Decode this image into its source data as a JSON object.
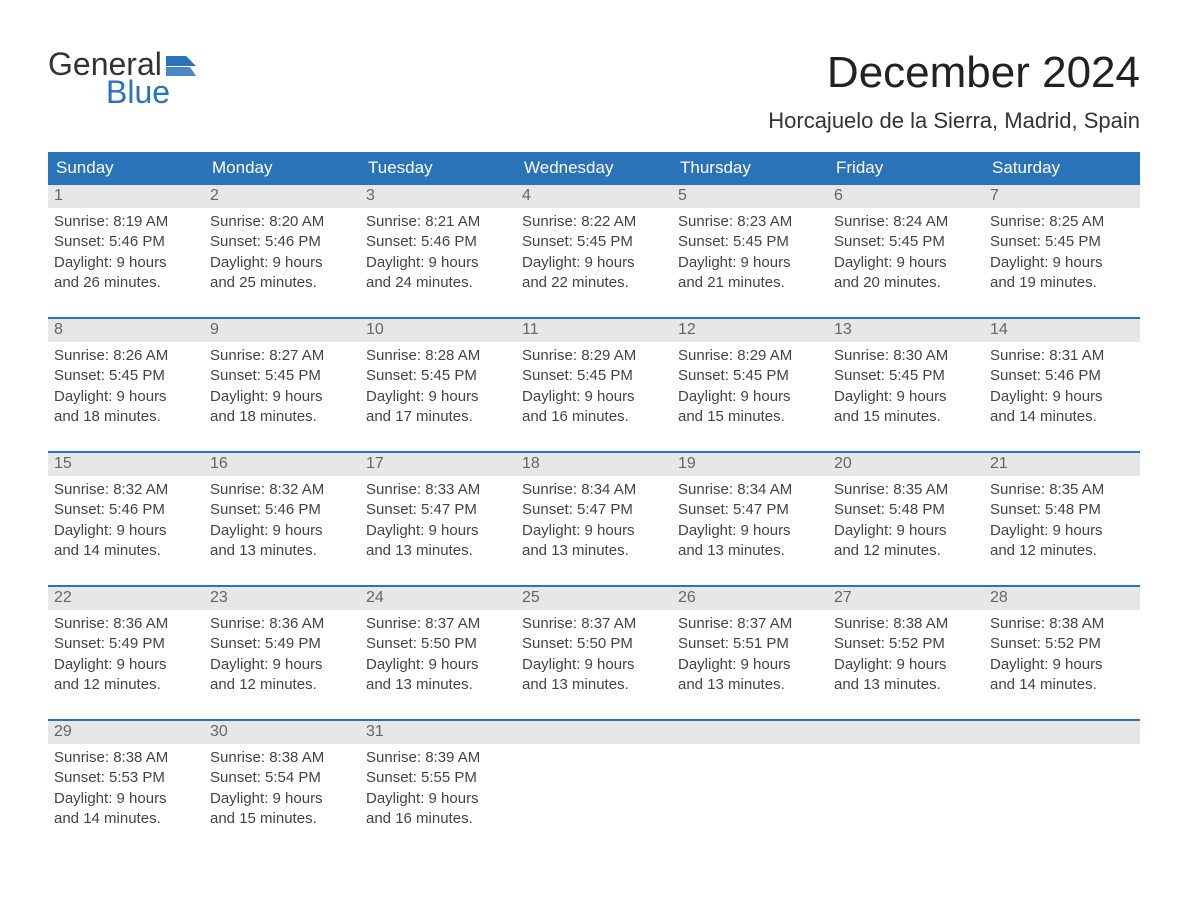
{
  "logo": {
    "line1": "General",
    "line2": "Blue",
    "flag_color": "#2b73b8"
  },
  "title": "December 2024",
  "location": "Horcajuelo de la Sierra, Madrid, Spain",
  "colors": {
    "header_bg": "#2b73b8",
    "date_bar_bg": "#e7e7e7",
    "text": "#333333",
    "body_bg": "#ffffff"
  },
  "day_headers": [
    "Sunday",
    "Monday",
    "Tuesday",
    "Wednesday",
    "Thursday",
    "Friday",
    "Saturday"
  ],
  "weeks": [
    [
      {
        "date": "1",
        "sunrise": "Sunrise: 8:19 AM",
        "sunset": "Sunset: 5:46 PM",
        "daylight1": "Daylight: 9 hours",
        "daylight2": "and 26 minutes."
      },
      {
        "date": "2",
        "sunrise": "Sunrise: 8:20 AM",
        "sunset": "Sunset: 5:46 PM",
        "daylight1": "Daylight: 9 hours",
        "daylight2": "and 25 minutes."
      },
      {
        "date": "3",
        "sunrise": "Sunrise: 8:21 AM",
        "sunset": "Sunset: 5:46 PM",
        "daylight1": "Daylight: 9 hours",
        "daylight2": "and 24 minutes."
      },
      {
        "date": "4",
        "sunrise": "Sunrise: 8:22 AM",
        "sunset": "Sunset: 5:45 PM",
        "daylight1": "Daylight: 9 hours",
        "daylight2": "and 22 minutes."
      },
      {
        "date": "5",
        "sunrise": "Sunrise: 8:23 AM",
        "sunset": "Sunset: 5:45 PM",
        "daylight1": "Daylight: 9 hours",
        "daylight2": "and 21 minutes."
      },
      {
        "date": "6",
        "sunrise": "Sunrise: 8:24 AM",
        "sunset": "Sunset: 5:45 PM",
        "daylight1": "Daylight: 9 hours",
        "daylight2": "and 20 minutes."
      },
      {
        "date": "7",
        "sunrise": "Sunrise: 8:25 AM",
        "sunset": "Sunset: 5:45 PM",
        "daylight1": "Daylight: 9 hours",
        "daylight2": "and 19 minutes."
      }
    ],
    [
      {
        "date": "8",
        "sunrise": "Sunrise: 8:26 AM",
        "sunset": "Sunset: 5:45 PM",
        "daylight1": "Daylight: 9 hours",
        "daylight2": "and 18 minutes."
      },
      {
        "date": "9",
        "sunrise": "Sunrise: 8:27 AM",
        "sunset": "Sunset: 5:45 PM",
        "daylight1": "Daylight: 9 hours",
        "daylight2": "and 18 minutes."
      },
      {
        "date": "10",
        "sunrise": "Sunrise: 8:28 AM",
        "sunset": "Sunset: 5:45 PM",
        "daylight1": "Daylight: 9 hours",
        "daylight2": "and 17 minutes."
      },
      {
        "date": "11",
        "sunrise": "Sunrise: 8:29 AM",
        "sunset": "Sunset: 5:45 PM",
        "daylight1": "Daylight: 9 hours",
        "daylight2": "and 16 minutes."
      },
      {
        "date": "12",
        "sunrise": "Sunrise: 8:29 AM",
        "sunset": "Sunset: 5:45 PM",
        "daylight1": "Daylight: 9 hours",
        "daylight2": "and 15 minutes."
      },
      {
        "date": "13",
        "sunrise": "Sunrise: 8:30 AM",
        "sunset": "Sunset: 5:45 PM",
        "daylight1": "Daylight: 9 hours",
        "daylight2": "and 15 minutes."
      },
      {
        "date": "14",
        "sunrise": "Sunrise: 8:31 AM",
        "sunset": "Sunset: 5:46 PM",
        "daylight1": "Daylight: 9 hours",
        "daylight2": "and 14 minutes."
      }
    ],
    [
      {
        "date": "15",
        "sunrise": "Sunrise: 8:32 AM",
        "sunset": "Sunset: 5:46 PM",
        "daylight1": "Daylight: 9 hours",
        "daylight2": "and 14 minutes."
      },
      {
        "date": "16",
        "sunrise": "Sunrise: 8:32 AM",
        "sunset": "Sunset: 5:46 PM",
        "daylight1": "Daylight: 9 hours",
        "daylight2": "and 13 minutes."
      },
      {
        "date": "17",
        "sunrise": "Sunrise: 8:33 AM",
        "sunset": "Sunset: 5:47 PM",
        "daylight1": "Daylight: 9 hours",
        "daylight2": "and 13 minutes."
      },
      {
        "date": "18",
        "sunrise": "Sunrise: 8:34 AM",
        "sunset": "Sunset: 5:47 PM",
        "daylight1": "Daylight: 9 hours",
        "daylight2": "and 13 minutes."
      },
      {
        "date": "19",
        "sunrise": "Sunrise: 8:34 AM",
        "sunset": "Sunset: 5:47 PM",
        "daylight1": "Daylight: 9 hours",
        "daylight2": "and 13 minutes."
      },
      {
        "date": "20",
        "sunrise": "Sunrise: 8:35 AM",
        "sunset": "Sunset: 5:48 PM",
        "daylight1": "Daylight: 9 hours",
        "daylight2": "and 12 minutes."
      },
      {
        "date": "21",
        "sunrise": "Sunrise: 8:35 AM",
        "sunset": "Sunset: 5:48 PM",
        "daylight1": "Daylight: 9 hours",
        "daylight2": "and 12 minutes."
      }
    ],
    [
      {
        "date": "22",
        "sunrise": "Sunrise: 8:36 AM",
        "sunset": "Sunset: 5:49 PM",
        "daylight1": "Daylight: 9 hours",
        "daylight2": "and 12 minutes."
      },
      {
        "date": "23",
        "sunrise": "Sunrise: 8:36 AM",
        "sunset": "Sunset: 5:49 PM",
        "daylight1": "Daylight: 9 hours",
        "daylight2": "and 12 minutes."
      },
      {
        "date": "24",
        "sunrise": "Sunrise: 8:37 AM",
        "sunset": "Sunset: 5:50 PM",
        "daylight1": "Daylight: 9 hours",
        "daylight2": "and 13 minutes."
      },
      {
        "date": "25",
        "sunrise": "Sunrise: 8:37 AM",
        "sunset": "Sunset: 5:50 PM",
        "daylight1": "Daylight: 9 hours",
        "daylight2": "and 13 minutes."
      },
      {
        "date": "26",
        "sunrise": "Sunrise: 8:37 AM",
        "sunset": "Sunset: 5:51 PM",
        "daylight1": "Daylight: 9 hours",
        "daylight2": "and 13 minutes."
      },
      {
        "date": "27",
        "sunrise": "Sunrise: 8:38 AM",
        "sunset": "Sunset: 5:52 PM",
        "daylight1": "Daylight: 9 hours",
        "daylight2": "and 13 minutes."
      },
      {
        "date": "28",
        "sunrise": "Sunrise: 8:38 AM",
        "sunset": "Sunset: 5:52 PM",
        "daylight1": "Daylight: 9 hours",
        "daylight2": "and 14 minutes."
      }
    ],
    [
      {
        "date": "29",
        "sunrise": "Sunrise: 8:38 AM",
        "sunset": "Sunset: 5:53 PM",
        "daylight1": "Daylight: 9 hours",
        "daylight2": "and 14 minutes."
      },
      {
        "date": "30",
        "sunrise": "Sunrise: 8:38 AM",
        "sunset": "Sunset: 5:54 PM",
        "daylight1": "Daylight: 9 hours",
        "daylight2": "and 15 minutes."
      },
      {
        "date": "31",
        "sunrise": "Sunrise: 8:39 AM",
        "sunset": "Sunset: 5:55 PM",
        "daylight1": "Daylight: 9 hours",
        "daylight2": "and 16 minutes."
      },
      {
        "date": "",
        "sunrise": "",
        "sunset": "",
        "daylight1": "",
        "daylight2": ""
      },
      {
        "date": "",
        "sunrise": "",
        "sunset": "",
        "daylight1": "",
        "daylight2": ""
      },
      {
        "date": "",
        "sunrise": "",
        "sunset": "",
        "daylight1": "",
        "daylight2": ""
      },
      {
        "date": "",
        "sunrise": "",
        "sunset": "",
        "daylight1": "",
        "daylight2": ""
      }
    ]
  ]
}
